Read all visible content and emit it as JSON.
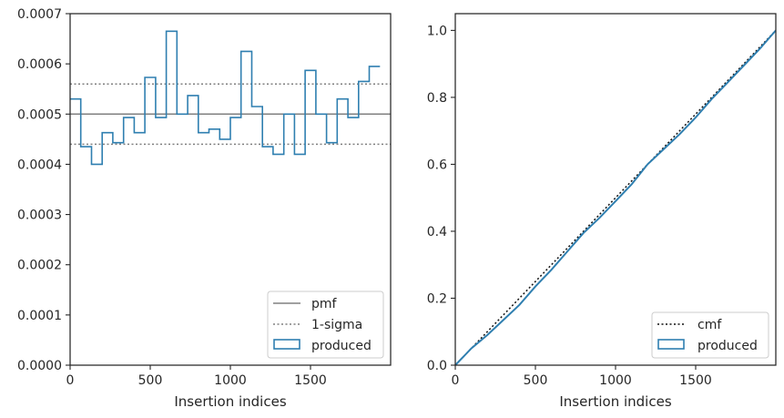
{
  "chart_data": [
    {
      "type": "line",
      "xlabel": "Insertion indices",
      "ylabel": "",
      "xlim": [
        0,
        2000
      ],
      "ylim": [
        0,
        0.0007
      ],
      "xticks": [
        0,
        500,
        1000,
        1500
      ],
      "xtick_labels": [
        "0",
        "500",
        "1000",
        "1500"
      ],
      "yticks": [
        0,
        0.0001,
        0.0002,
        0.0003,
        0.0004,
        0.0005,
        0.0006,
        0.0007
      ],
      "ytick_labels": [
        "0.0000",
        "0.0001",
        "0.0002",
        "0.0003",
        "0.0004",
        "0.0005",
        "0.0006",
        "0.0007"
      ],
      "pmf": 0.0005,
      "sigma_band": [
        0.00044,
        0.00056
      ],
      "histogram": {
        "bin_width": 66.67,
        "bin_edges_start": 0,
        "values": [
          0.00053,
          0.000435,
          0.0004,
          0.000463,
          0.000443,
          0.000493,
          0.000463,
          0.000573,
          0.000493,
          0.000665,
          0.0005,
          0.000537,
          0.000463,
          0.00047,
          0.00045,
          0.000493,
          0.000625,
          0.000515,
          0.000435,
          0.00042,
          0.0005,
          0.00042,
          0.000587,
          0.0005,
          0.000443,
          0.00053,
          0.000493,
          0.000565,
          0.000595
        ]
      },
      "legend": {
        "position": "lower right",
        "entries": [
          "pmf",
          "1-sigma",
          "produced"
        ]
      },
      "colors": {
        "pmf": "#808080",
        "sigma": "#808080",
        "produced": "#2f7fb0"
      }
    },
    {
      "type": "line",
      "xlabel": "Insertion indices",
      "ylabel": "",
      "xlim": [
        0,
        2000
      ],
      "ylim": [
        0,
        1.05
      ],
      "xticks": [
        0,
        500,
        1000,
        1500
      ],
      "xtick_labels": [
        "0",
        "500",
        "1000",
        "1500"
      ],
      "yticks": [
        0,
        0.2,
        0.4,
        0.6,
        0.8,
        1.0
      ],
      "ytick_labels": [
        "0.0",
        "0.2",
        "0.4",
        "0.6",
        "0.8",
        "1.0"
      ],
      "cmf": {
        "x": [
          0,
          2000
        ],
        "y": [
          0,
          1.0
        ]
      },
      "produced": {
        "x": [
          0,
          100,
          200,
          300,
          400,
          500,
          600,
          700,
          800,
          900,
          1000,
          1100,
          1200,
          1300,
          1400,
          1500,
          1600,
          1700,
          1800,
          1900,
          2000
        ],
        "y": [
          0,
          0.05,
          0.09,
          0.135,
          0.18,
          0.235,
          0.285,
          0.34,
          0.395,
          0.44,
          0.49,
          0.54,
          0.6,
          0.645,
          0.69,
          0.74,
          0.795,
          0.845,
          0.895,
          0.945,
          1.0
        ]
      },
      "legend": {
        "position": "lower right",
        "entries": [
          "cmf",
          "produced"
        ]
      },
      "colors": {
        "cmf": "#111111",
        "produced": "#2f7fb0"
      }
    }
  ]
}
